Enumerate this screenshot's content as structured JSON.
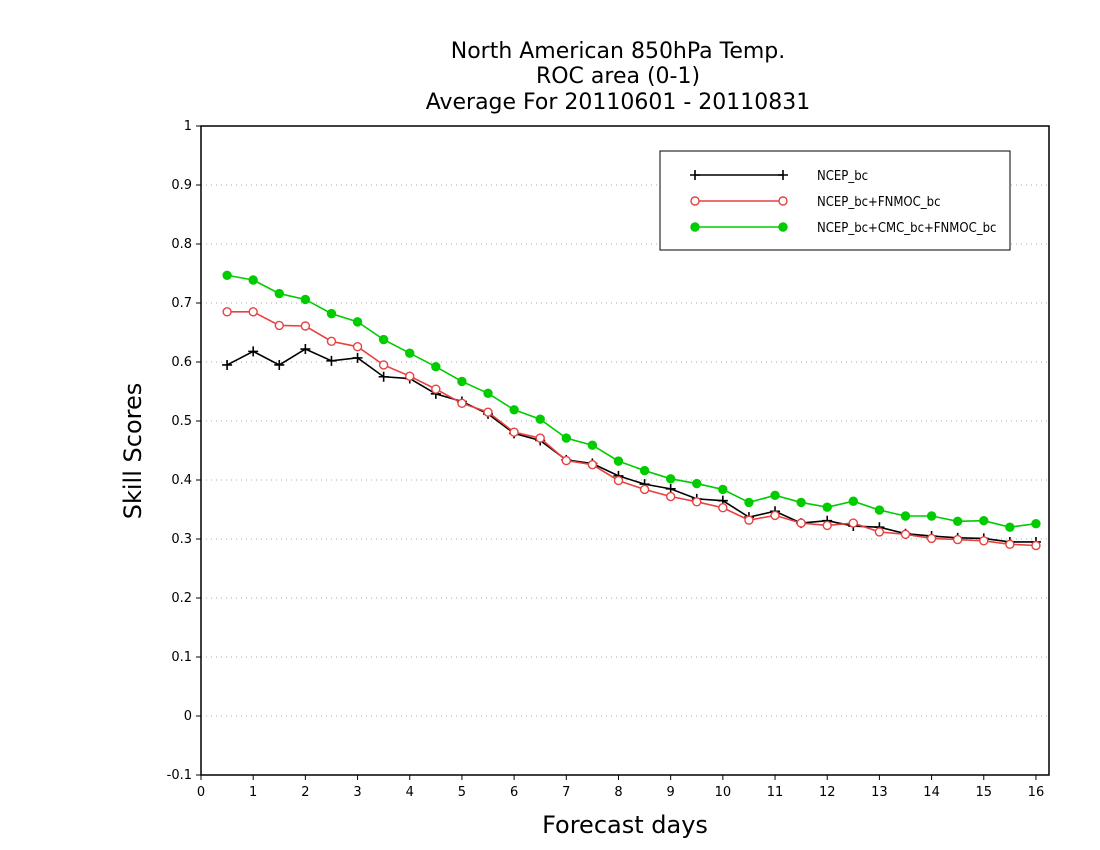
{
  "chart_data": {
    "type": "line",
    "title": [
      "North American 850hPa Temp.",
      "ROC area (0-1)",
      "Average For 20110601 - 20110831"
    ],
    "xlabel": "Forecast days",
    "ylabel": "Skill Scores",
    "xlim": [
      0,
      16.25
    ],
    "ylim": [
      -0.1,
      1
    ],
    "xticks": [
      0,
      1,
      2,
      3,
      4,
      5,
      6,
      7,
      8,
      9,
      10,
      11,
      12,
      13,
      14,
      15,
      16
    ],
    "yticks": [
      -0.1,
      0,
      0.1,
      0.2,
      0.3,
      0.4,
      0.5,
      0.6,
      0.7,
      0.8,
      0.9,
      1
    ],
    "ytick_labels": [
      "-0.1",
      "0",
      "0.1",
      "0.2",
      "0.3",
      "0.4",
      "0.5",
      "0.6",
      "0.7",
      "0.8",
      "0.9",
      "1"
    ],
    "grid": "horizontal dotted",
    "legend_position": "top-right",
    "x": [
      0.5,
      1,
      1.5,
      2,
      2.5,
      3,
      3.5,
      4,
      4.5,
      5,
      5.5,
      6,
      6.5,
      7,
      7.5,
      8,
      8.5,
      9,
      9.5,
      10,
      10.5,
      11,
      11.5,
      12,
      12.5,
      13,
      13.5,
      14,
      14.5,
      15,
      15.5,
      16
    ],
    "series": [
      {
        "name": "NCEP_bc",
        "color": "#000000",
        "marker": "plus",
        "values": [
          0.595,
          0.618,
          0.595,
          0.622,
          0.602,
          0.607,
          0.575,
          0.572,
          0.546,
          0.533,
          0.512,
          0.479,
          0.467,
          0.434,
          0.428,
          0.407,
          0.393,
          0.385,
          0.368,
          0.365,
          0.337,
          0.347,
          0.327,
          0.331,
          0.322,
          0.32,
          0.309,
          0.305,
          0.302,
          0.301,
          0.295,
          0.295
        ]
      },
      {
        "name": "NCEP_bc+FNMOC_bc",
        "color": "#e8413f",
        "marker": "open-circle",
        "values": [
          0.685,
          0.685,
          0.662,
          0.661,
          0.635,
          0.626,
          0.595,
          0.576,
          0.554,
          0.53,
          0.515,
          0.481,
          0.471,
          0.433,
          0.426,
          0.399,
          0.384,
          0.372,
          0.363,
          0.353,
          0.332,
          0.34,
          0.327,
          0.323,
          0.327,
          0.312,
          0.308,
          0.301,
          0.299,
          0.297,
          0.291,
          0.289
        ]
      },
      {
        "name": "NCEP_bc+CMC_bc+FNMOC_bc",
        "color": "#00cc00",
        "marker": "filled-circle",
        "values": [
          0.747,
          0.739,
          0.716,
          0.706,
          0.682,
          0.668,
          0.638,
          0.615,
          0.592,
          0.567,
          0.547,
          0.519,
          0.503,
          0.471,
          0.459,
          0.432,
          0.416,
          0.402,
          0.394,
          0.384,
          0.362,
          0.374,
          0.362,
          0.354,
          0.364,
          0.349,
          0.339,
          0.339,
          0.33,
          0.331,
          0.32,
          0.326
        ]
      }
    ]
  }
}
